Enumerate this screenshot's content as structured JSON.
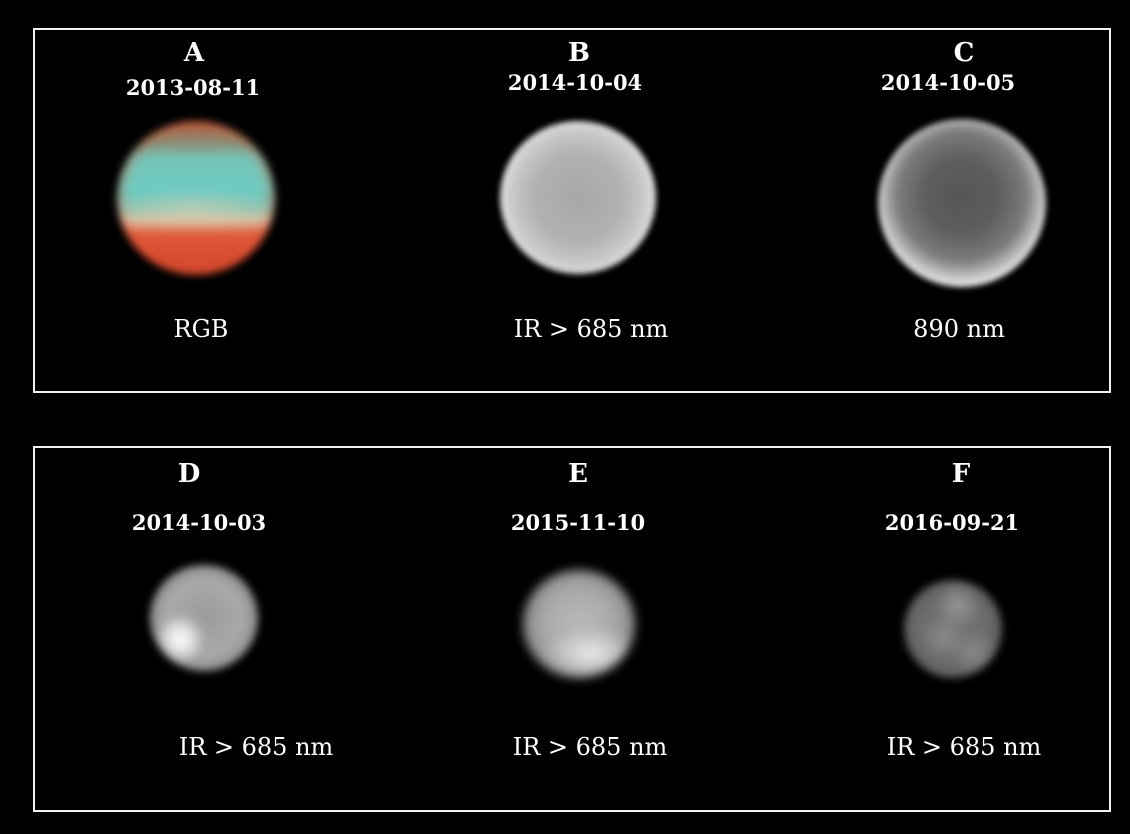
{
  "panels": {
    "top": [
      {
        "letter": "A",
        "date": "2013-08-11",
        "filter": "RGB"
      },
      {
        "letter": "B",
        "date": "2014-10-04",
        "filter": "IR > 685 nm"
      },
      {
        "letter": "C",
        "date": "2014-10-05",
        "filter": "890 nm"
      }
    ],
    "bottom": [
      {
        "letter": "D",
        "date": "2014-10-03",
        "filter": "IR > 685 nm"
      },
      {
        "letter": "E",
        "date": "2015-11-10",
        "filter": "IR > 685 nm"
      },
      {
        "letter": "F",
        "date": "2016-09-21",
        "filter": "IR > 685 nm"
      }
    ]
  },
  "colors": {
    "background": "#000000",
    "frame": "#f2f2f2",
    "text": "#ffffff"
  }
}
